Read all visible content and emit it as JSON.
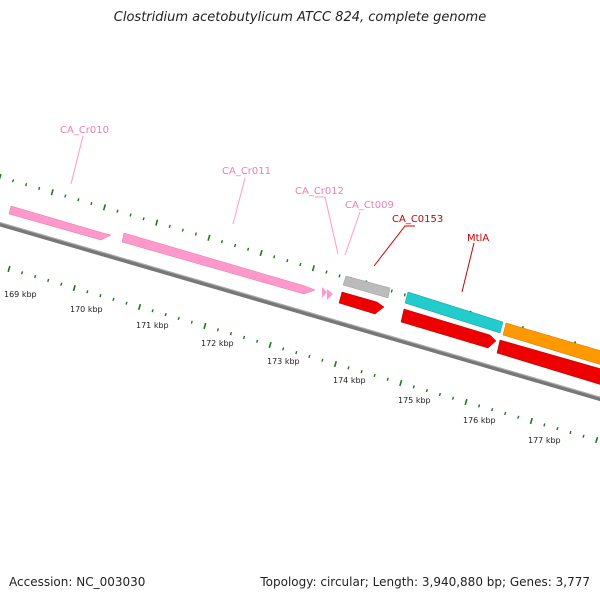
{
  "title": "Clostridium acetobutylicum ATCC 824, complete genome",
  "footer": {
    "accession": "Accession: NC_003030",
    "summary": "Topology: circular; Length: 3,940,880 bp; Genes: 3,777"
  },
  "colors": {
    "backbone": "#888888",
    "tick": "#1a7a1a",
    "pink": "#ff99cc",
    "pink_label": "#e87fb5",
    "grey": "#bbbbbb",
    "red": "#ee0000",
    "cyan": "#22cccc",
    "orange": "#ff9900",
    "red_label": "#cc0000"
  },
  "axis": {
    "tick_labels": [
      "169 kbp",
      "170 kbp",
      "171 kbp",
      "172 kbp",
      "173 kbp",
      "174 kbp",
      "175 kbp",
      "176 kbp",
      "177 kbp"
    ]
  },
  "features": [
    {
      "label": "CA_Cr010",
      "color": "pink",
      "label_color": "pink_label"
    },
    {
      "label": "CA_Cr011",
      "color": "pink",
      "label_color": "pink_label"
    },
    {
      "label": "CA_Cr012",
      "color": "pink",
      "label_color": "pink_label"
    },
    {
      "label": "CA_Ct009",
      "color": "grey",
      "label_color": "pink_label"
    },
    {
      "label": "CA_C0153",
      "color": "red",
      "label_color": "red_label"
    },
    {
      "label": "MtlA",
      "color": "cyan",
      "label_color": "red_label"
    }
  ]
}
